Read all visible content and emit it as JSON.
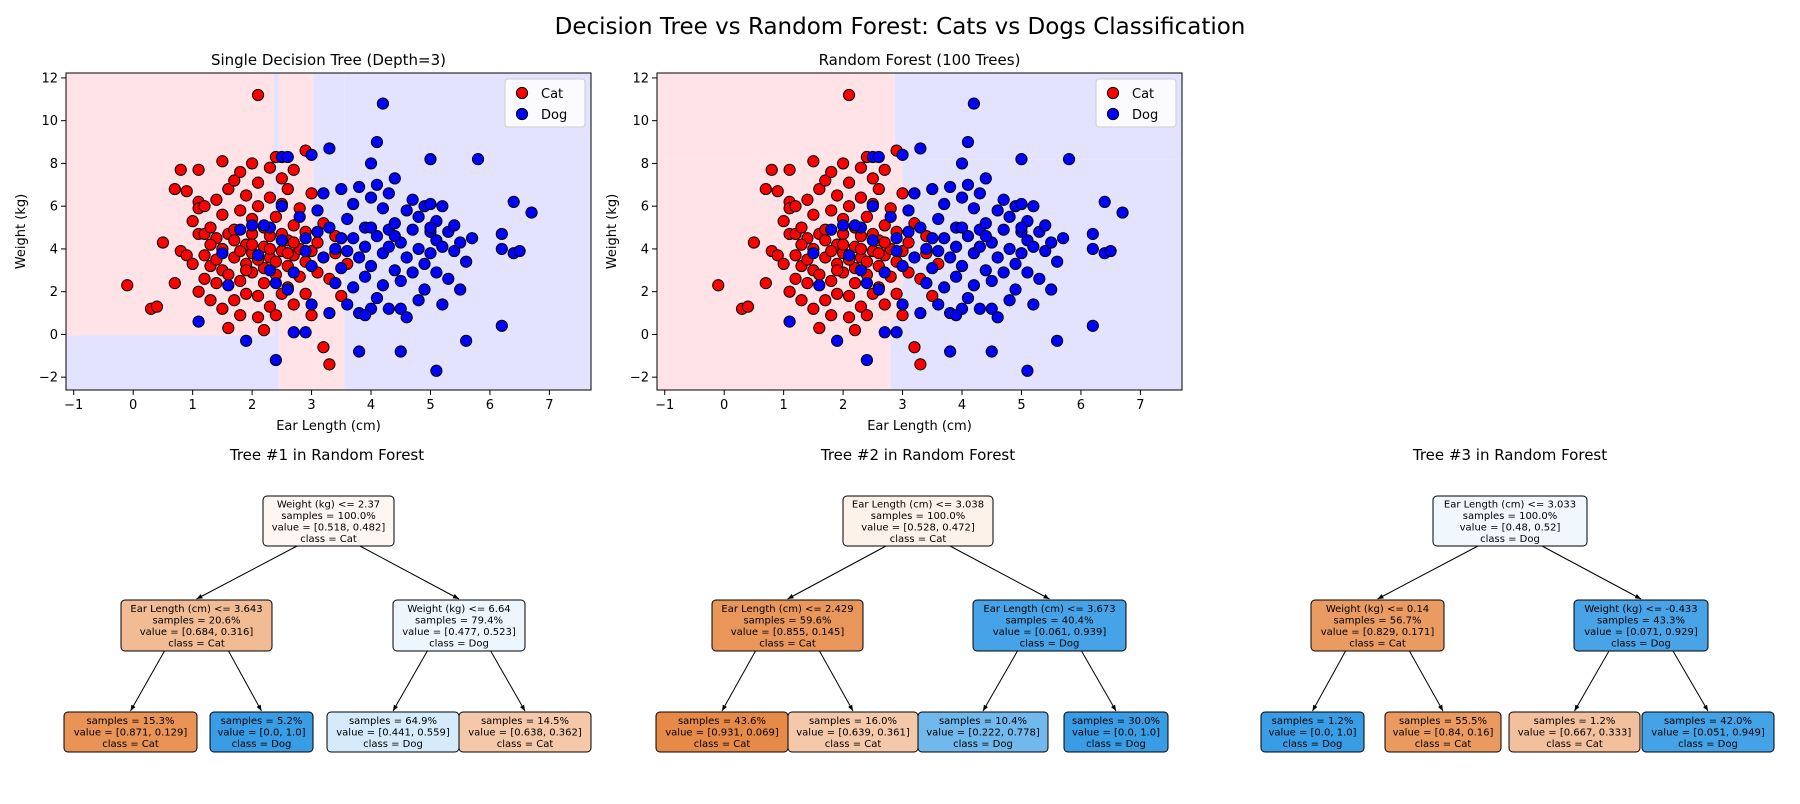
{
  "title": "Decision Tree vs Random Forest: Cats vs Dogs Classification",
  "colors": {
    "cat": "#ff0000",
    "dog": "#0000ff",
    "cat_region": "#ffe3e6",
    "dog_region": "#e3e3ff",
    "tree_cat": "#e58139",
    "tree_dog": "#399de5"
  },
  "chart_data": [
    {
      "type": "scatter",
      "title": "Single Decision Tree (Depth=3)",
      "xlabel": "Ear Length (cm)",
      "ylabel": "Weight (kg)",
      "xlim": [
        -1.13,
        7.7
      ],
      "ylim": [
        -2.6,
        12.23
      ],
      "xticks": [
        -1,
        0,
        1,
        2,
        3,
        4,
        5,
        6,
        7
      ],
      "yticks": [
        -2,
        0,
        2,
        4,
        6,
        8,
        10,
        12
      ],
      "legend": {
        "placement": "top-right",
        "entries": [
          "Cat",
          "Dog"
        ]
      },
      "decision_regions": [
        {
          "class": "Cat",
          "x": [
            -1.13,
            2.37
          ],
          "y": [
            -0.05,
            12.23
          ]
        },
        {
          "class": "Dog",
          "x": [
            -1.13,
            2.37
          ],
          "y": [
            -2.6,
            -0.05
          ]
        },
        {
          "class": "Dog",
          "x": [
            2.37,
            2.45
          ],
          "y": [
            -2.6,
            12.23
          ]
        },
        {
          "class": "Cat",
          "x": [
            2.45,
            3.03
          ],
          "y": [
            -2.6,
            12.23
          ]
        },
        {
          "class": "Cat",
          "x": [
            3.03,
            3.55
          ],
          "y": [
            -2.6,
            3.9
          ]
        },
        {
          "class": "Dog",
          "x": [
            3.03,
            3.55
          ],
          "y": [
            3.9,
            12.23
          ]
        },
        {
          "class": "Dog",
          "x": [
            3.55,
            7.7
          ],
          "y": [
            -2.6,
            12.23
          ]
        }
      ]
    },
    {
      "type": "scatter",
      "title": "Random Forest (100 Trees)",
      "xlabel": "Ear Length (cm)",
      "ylabel": "Weight (kg)",
      "xlim": [
        -1.13,
        7.7
      ],
      "ylim": [
        -2.6,
        12.23
      ],
      "xticks": [
        -1,
        0,
        1,
        2,
        3,
        4,
        5,
        6,
        7
      ],
      "yticks": [
        -2,
        0,
        2,
        4,
        6,
        8,
        10,
        12
      ],
      "legend": {
        "placement": "top-right",
        "entries": [
          "Cat",
          "Dog"
        ]
      },
      "decision_regions": [
        {
          "class": "Cat",
          "x": [
            -1.13,
            2.87
          ],
          "y": [
            8.2,
            12.23
          ]
        },
        {
          "class": "Cat",
          "x": [
            -1.13,
            3.0
          ],
          "y": [
            0.7,
            8.2
          ]
        },
        {
          "class": "Cat",
          "x": [
            -1.13,
            2.8
          ],
          "y": [
            -2.6,
            0.7
          ]
        },
        {
          "class": "Dog",
          "x": [
            2.87,
            7.7
          ],
          "y": [
            8.2,
            12.23
          ]
        },
        {
          "class": "Dog",
          "x": [
            3.0,
            7.7
          ],
          "y": [
            0.7,
            8.2
          ]
        },
        {
          "class": "Dog",
          "x": [
            2.8,
            7.7
          ],
          "y": [
            -2.6,
            0.7
          ]
        }
      ]
    }
  ],
  "points": {
    "Cat": [
      [
        2.1,
        11.2
      ],
      [
        -0.1,
        2.3
      ],
      [
        0.3,
        1.2
      ],
      [
        0.4,
        1.3
      ],
      [
        0.5,
        4.3
      ],
      [
        0.7,
        6.8
      ],
      [
        0.7,
        2.4
      ],
      [
        0.8,
        3.9
      ],
      [
        0.8,
        7.7
      ],
      [
        0.9,
        3.7
      ],
      [
        0.9,
        6.7
      ],
      [
        1.0,
        5.3
      ],
      [
        1.0,
        3.3
      ],
      [
        1.1,
        7.7
      ],
      [
        1.1,
        6.2
      ],
      [
        1.1,
        5.9
      ],
      [
        1.1,
        4.7
      ],
      [
        1.1,
        2.0
      ],
      [
        1.2,
        4.7
      ],
      [
        1.2,
        2.6
      ],
      [
        1.2,
        6.0
      ],
      [
        1.3,
        1.6
      ],
      [
        1.3,
        3.2
      ],
      [
        1.3,
        5.0
      ],
      [
        1.4,
        6.3
      ],
      [
        1.4,
        2.4
      ],
      [
        1.4,
        4.5
      ],
      [
        1.5,
        8.1
      ],
      [
        1.5,
        3.0
      ],
      [
        1.5,
        1.2
      ],
      [
        1.5,
        5.6
      ],
      [
        1.6,
        4.7
      ],
      [
        1.6,
        2.8
      ],
      [
        1.6,
        6.8
      ],
      [
        1.6,
        0.3
      ],
      [
        1.7,
        3.6
      ],
      [
        1.7,
        1.6
      ],
      [
        1.7,
        7.2
      ],
      [
        1.7,
        4.9
      ],
      [
        1.8,
        2.5
      ],
      [
        1.8,
        5.8
      ],
      [
        1.8,
        0.9
      ],
      [
        1.8,
        7.6
      ],
      [
        1.9,
        3.3
      ],
      [
        1.9,
        4.2
      ],
      [
        1.9,
        6.5
      ],
      [
        1.9,
        1.9
      ],
      [
        2.0,
        8.0
      ],
      [
        2.0,
        4.7
      ],
      [
        2.0,
        2.9
      ],
      [
        2.0,
        3.8
      ],
      [
        2.0,
        5.4
      ],
      [
        2.1,
        0.8
      ],
      [
        2.1,
        6.0
      ],
      [
        2.1,
        1.8
      ],
      [
        2.1,
        7.1
      ],
      [
        2.2,
        4.1
      ],
      [
        2.2,
        3.1
      ],
      [
        2.2,
        2.4
      ],
      [
        2.2,
        5.0
      ],
      [
        2.2,
        0.2
      ],
      [
        2.3,
        6.4
      ],
      [
        2.3,
        7.8
      ],
      [
        2.3,
        3.6
      ],
      [
        2.3,
        1.3
      ],
      [
        2.3,
        4.6
      ],
      [
        2.4,
        8.3
      ],
      [
        2.4,
        2.8
      ],
      [
        2.4,
        5.5
      ],
      [
        2.4,
        0.9
      ],
      [
        2.5,
        3.9
      ],
      [
        2.5,
        7.3
      ],
      [
        2.5,
        6.1
      ],
      [
        2.5,
        1.9
      ],
      [
        2.6,
        4.4
      ],
      [
        2.6,
        3.2
      ],
      [
        2.6,
        6.8
      ],
      [
        2.6,
        2.2
      ],
      [
        2.7,
        5.1
      ],
      [
        2.7,
        7.7
      ],
      [
        2.7,
        3.7
      ],
      [
        2.7,
        1.4
      ],
      [
        2.8,
        4.0
      ],
      [
        2.8,
        5.9
      ],
      [
        2.8,
        2.7
      ],
      [
        2.9,
        8.6
      ],
      [
        2.9,
        3.4
      ],
      [
        2.9,
        4.8
      ],
      [
        2.9,
        1.9
      ],
      [
        3.0,
        6.6
      ],
      [
        3.0,
        3.9
      ],
      [
        3.0,
        0.9
      ],
      [
        3.1,
        2.9
      ],
      [
        3.1,
        4.3
      ],
      [
        3.2,
        -0.6
      ],
      [
        3.2,
        5.2
      ],
      [
        3.3,
        -1.4
      ],
      [
        3.3,
        2.6
      ],
      [
        3.4,
        3.8
      ],
      [
        3.4,
        4.6
      ],
      [
        3.5,
        1.8
      ],
      [
        3.6,
        3.3
      ],
      [
        1.3,
        4.2
      ],
      [
        1.5,
        4.0
      ],
      [
        1.7,
        4.4
      ],
      [
        1.9,
        3.0
      ],
      [
        2.1,
        3.5
      ],
      [
        2.3,
        4.0
      ],
      [
        2.5,
        4.7
      ],
      [
        2.7,
        4.3
      ],
      [
        2.0,
        4.2
      ],
      [
        1.8,
        3.9
      ],
      [
        2.4,
        3.4
      ],
      [
        2.6,
        3.8
      ],
      [
        1.2,
        3.7
      ],
      [
        1.4,
        3.5
      ]
    ],
    "Dog": [
      [
        4.2,
        10.8
      ],
      [
        4.1,
        9.0
      ],
      [
        5.8,
        8.2
      ],
      [
        5.0,
        8.2
      ],
      [
        2.4,
        -1.2
      ],
      [
        5.1,
        -1.7
      ],
      [
        6.2,
        0.4
      ],
      [
        6.4,
        6.2
      ],
      [
        6.7,
        5.7
      ],
      [
        1.1,
        0.6
      ],
      [
        1.9,
        -0.3
      ],
      [
        3.8,
        -0.8
      ],
      [
        4.5,
        -0.8
      ],
      [
        5.6,
        -0.3
      ],
      [
        3.3,
        8.7
      ],
      [
        4.0,
        8.0
      ],
      [
        2.5,
        8.3
      ],
      [
        2.6,
        8.3
      ],
      [
        3.0,
        8.4
      ],
      [
        2.5,
        6.0
      ],
      [
        2.3,
        5.0
      ],
      [
        2.2,
        5.1
      ],
      [
        2.9,
        4.5
      ],
      [
        3.1,
        5.8
      ],
      [
        3.2,
        6.6
      ],
      [
        3.3,
        5.0
      ],
      [
        3.4,
        4.0
      ],
      [
        3.4,
        2.4
      ],
      [
        3.5,
        6.8
      ],
      [
        3.5,
        3.1
      ],
      [
        3.6,
        5.4
      ],
      [
        3.6,
        1.4
      ],
      [
        3.7,
        6.1
      ],
      [
        3.7,
        4.5
      ],
      [
        3.7,
        2.2
      ],
      [
        3.8,
        6.9
      ],
      [
        3.8,
        3.6
      ],
      [
        3.8,
        1.0
      ],
      [
        3.9,
        5.0
      ],
      [
        3.9,
        4.1
      ],
      [
        3.9,
        2.7
      ],
      [
        4.0,
        6.4
      ],
      [
        4.0,
        3.2
      ],
      [
        4.0,
        1.2
      ],
      [
        4.1,
        7.0
      ],
      [
        4.1,
        4.6
      ],
      [
        4.1,
        1.7
      ],
      [
        4.2,
        5.9
      ],
      [
        4.2,
        3.8
      ],
      [
        4.2,
        2.3
      ],
      [
        4.3,
        6.6
      ],
      [
        4.3,
        4.9
      ],
      [
        4.3,
        1.2
      ],
      [
        4.4,
        5.2
      ],
      [
        4.4,
        3.0
      ],
      [
        4.4,
        7.3
      ],
      [
        4.5,
        4.3
      ],
      [
        4.5,
        2.5
      ],
      [
        4.5,
        1.2
      ],
      [
        4.6,
        5.8
      ],
      [
        4.6,
        3.6
      ],
      [
        4.6,
        0.8
      ],
      [
        4.7,
        4.9
      ],
      [
        4.7,
        2.9
      ],
      [
        4.7,
        6.3
      ],
      [
        4.8,
        4.0
      ],
      [
        4.8,
        1.6
      ],
      [
        4.8,
        5.5
      ],
      [
        4.9,
        6.0
      ],
      [
        4.9,
        3.3
      ],
      [
        4.9,
        2.1
      ],
      [
        5.0,
        4.8
      ],
      [
        5.0,
        3.8
      ],
      [
        5.0,
        6.1
      ],
      [
        5.1,
        4.4
      ],
      [
        5.1,
        2.9
      ],
      [
        5.1,
        5.3
      ],
      [
        5.2,
        6.0
      ],
      [
        5.2,
        4.1
      ],
      [
        5.2,
        1.4
      ],
      [
        5.3,
        4.8
      ],
      [
        5.3,
        2.6
      ],
      [
        5.4,
        3.9
      ],
      [
        5.4,
        5.1
      ],
      [
        5.5,
        2.1
      ],
      [
        5.5,
        4.3
      ],
      [
        5.6,
        3.4
      ],
      [
        5.7,
        4.5
      ],
      [
        6.2,
        4.7
      ],
      [
        6.2,
        4.0
      ],
      [
        6.4,
        3.8
      ],
      [
        6.5,
        3.9
      ],
      [
        2.0,
        5.1
      ],
      [
        2.5,
        4.4
      ],
      [
        2.8,
        5.5
      ],
      [
        3.0,
        3.2
      ],
      [
        2.7,
        2.9
      ],
      [
        2.4,
        2.4
      ],
      [
        1.8,
        4.9
      ],
      [
        1.5,
        3.8
      ],
      [
        2.1,
        3.7
      ],
      [
        2.9,
        3.9
      ],
      [
        3.2,
        3.6
      ],
      [
        2.6,
        2.1
      ],
      [
        3.0,
        1.4
      ],
      [
        2.9,
        0.1
      ],
      [
        2.7,
        0.1
      ],
      [
        3.1,
        4.8
      ],
      [
        1.6,
        2.3
      ],
      [
        3.5,
        4.5
      ],
      [
        3.6,
        3.9
      ],
      [
        4.0,
        5.0
      ],
      [
        4.4,
        4.6
      ],
      [
        5.0,
        5.0
      ],
      [
        4.3,
        4.1
      ],
      [
        3.3,
        1.0
      ],
      [
        3.9,
        0.9
      ],
      [
        2.3,
        3.0
      ]
    ]
  },
  "trees": [
    {
      "title": "Tree #1 in Random Forest",
      "nodes": [
        {
          "lines": [
            "Weight (kg) <= 2.37",
            "samples = 100.0%",
            "value = [0.518, 0.482]",
            "class = Cat"
          ],
          "value": [
            0.518,
            0.482
          ]
        },
        {
          "lines": [
            "Ear Length (cm) <= 3.643",
            "samples = 20.6%",
            "value = [0.684, 0.316]",
            "class = Cat"
          ],
          "value": [
            0.684,
            0.316
          ]
        },
        {
          "lines": [
            "Weight (kg) <= 6.64",
            "samples = 79.4%",
            "value = [0.477, 0.523]",
            "class = Dog"
          ],
          "value": [
            0.477,
            0.523
          ]
        },
        {
          "lines": [
            "samples = 15.3%",
            "value = [0.871, 0.129]",
            "class = Cat"
          ],
          "value": [
            0.871,
            0.129
          ]
        },
        {
          "lines": [
            "samples = 5.2%",
            "value = [0.0, 1.0]",
            "class = Dog"
          ],
          "value": [
            0.0,
            1.0
          ]
        },
        {
          "lines": [
            "samples = 64.9%",
            "value = [0.441, 0.559]",
            "class = Dog"
          ],
          "value": [
            0.441,
            0.559
          ]
        },
        {
          "lines": [
            "samples = 14.5%",
            "value = [0.638, 0.362]",
            "class = Cat"
          ],
          "value": [
            0.638,
            0.362
          ]
        }
      ]
    },
    {
      "title": "Tree #2 in Random Forest",
      "nodes": [
        {
          "lines": [
            "Ear Length (cm) <= 3.038",
            "samples = 100.0%",
            "value = [0.528, 0.472]",
            "class = Cat"
          ],
          "value": [
            0.528,
            0.472
          ]
        },
        {
          "lines": [
            "Ear Length (cm) <= 2.429",
            "samples = 59.6%",
            "value = [0.855, 0.145]",
            "class = Cat"
          ],
          "value": [
            0.855,
            0.145
          ]
        },
        {
          "lines": [
            "Ear Length (cm) <= 3.673",
            "samples = 40.4%",
            "value = [0.061, 0.939]",
            "class = Dog"
          ],
          "value": [
            0.061,
            0.939
          ]
        },
        {
          "lines": [
            "samples = 43.6%",
            "value = [0.931, 0.069]",
            "class = Cat"
          ],
          "value": [
            0.931,
            0.069
          ]
        },
        {
          "lines": [
            "samples = 16.0%",
            "value = [0.639, 0.361]",
            "class = Cat"
          ],
          "value": [
            0.639,
            0.361
          ]
        },
        {
          "lines": [
            "samples = 10.4%",
            "value = [0.222, 0.778]",
            "class = Dog"
          ],
          "value": [
            0.222,
            0.778
          ]
        },
        {
          "lines": [
            "samples = 30.0%",
            "value = [0.0, 1.0]",
            "class = Dog"
          ],
          "value": [
            0.0,
            1.0
          ]
        }
      ]
    },
    {
      "title": "Tree #3 in Random Forest",
      "nodes": [
        {
          "lines": [
            "Ear Length (cm) <= 3.033",
            "samples = 100.0%",
            "value = [0.48, 0.52]",
            "class = Dog"
          ],
          "value": [
            0.48,
            0.52
          ]
        },
        {
          "lines": [
            "Weight (kg) <= 0.14",
            "samples = 56.7%",
            "value = [0.829, 0.171]",
            "class = Cat"
          ],
          "value": [
            0.829,
            0.171
          ]
        },
        {
          "lines": [
            "Weight (kg) <= -0.433",
            "samples = 43.3%",
            "value = [0.071, 0.929]",
            "class = Dog"
          ],
          "value": [
            0.071,
            0.929
          ]
        },
        {
          "lines": [
            "samples = 1.2%",
            "value = [0.0, 1.0]",
            "class = Dog"
          ],
          "value": [
            0.0,
            1.0
          ]
        },
        {
          "lines": [
            "samples = 55.5%",
            "value = [0.84, 0.16]",
            "class = Cat"
          ],
          "value": [
            0.84,
            0.16
          ]
        },
        {
          "lines": [
            "samples = 1.2%",
            "value = [0.667, 0.333]",
            "class = Cat"
          ],
          "value": [
            0.667,
            0.333
          ]
        },
        {
          "lines": [
            "samples = 42.0%",
            "value = [0.051, 0.949]",
            "class = Dog"
          ],
          "value": [
            0.051,
            0.949
          ]
        }
      ]
    }
  ]
}
